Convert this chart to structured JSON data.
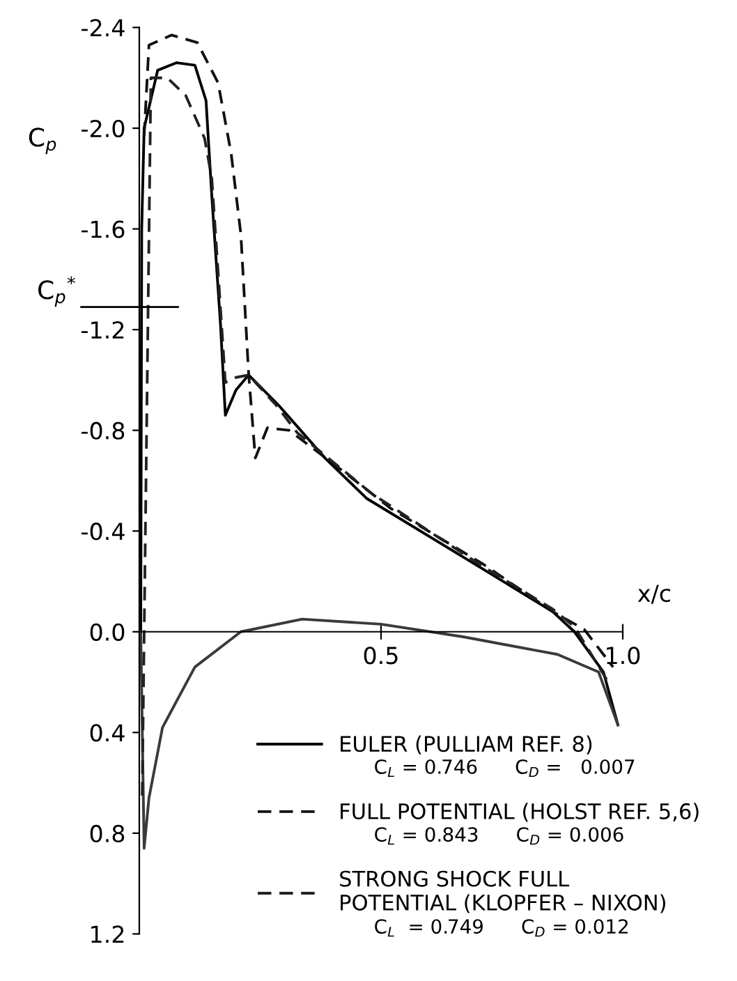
{
  "chart_data": {
    "type": "line",
    "ylabel": "C$_{p}$",
    "xlabel": "x/c",
    "xlim": [
      0,
      1.0
    ],
    "ylim": [
      1.2,
      -2.4
    ],
    "xticks": [
      0.5,
      {
        "value": 1,
        "label": "1.0"
      }
    ],
    "yticks": [
      -2.4,
      {
        "value": -2,
        "label": "-2.0"
      },
      -1.6,
      -1.2,
      -0.8,
      -0.4,
      {
        "value": 0,
        "label": "0.0"
      },
      0.4,
      0.8,
      1.2
    ],
    "grid": false,
    "legend": "bottom right",
    "marker": "none",
    "ref_lines": [
      {
        "axis": "y",
        "value": -1.29,
        "label": "C$_{p}$$^{*}$",
        "color": "#000000"
      }
    ],
    "annotations": [
      "C$_{L}$ = 0.746      C$_{D}$ =   0.007",
      "C$_{L}$ = 0.843      C$_{D}$ = 0.006",
      "C$_{L}$  = 0.749      C$_{D}$ = 0.012"
    ],
    "series": [
      {
        "name": "EULER (PULLIAM REF. 8)",
        "color": "#000000",
        "line_style": "solid",
        "x": [
          0.003,
          0.005,
          0.01,
          0.038,
          0.077,
          0.115,
          0.138,
          0.15,
          0.168,
          0.178,
          0.2,
          0.226,
          0.288,
          0.384,
          0.47,
          0.71,
          0.855,
          0.9,
          0.96,
          0.99
        ],
        "values": [
          0.0,
          -1.6,
          -2.0,
          -2.23,
          -2.26,
          -2.25,
          -2.11,
          -1.73,
          -1.22,
          -0.86,
          -0.96,
          -1.02,
          -0.9,
          -0.69,
          -0.53,
          -0.25,
          -0.08,
          0.0,
          0.16,
          0.37
        ]
      },
      {
        "color": "#3a3a3a",
        "line_style": "solid",
        "x": [
          0.003,
          0.01,
          0.02,
          0.048,
          0.115,
          0.21,
          0.337,
          0.5,
          0.67,
          0.865,
          0.95,
          0.99
        ],
        "values": [
          0.0,
          0.86,
          0.66,
          0.38,
          0.14,
          0.0,
          -0.05,
          -0.03,
          0.02,
          0.09,
          0.16,
          0.37
        ]
      },
      {
        "name": "FULL POTENTIAL (HOLST REF. 5,6)",
        "color": "#111111",
        "line_style": "dashed",
        "x": [
          0.01,
          0.02,
          0.067,
          0.12,
          0.163,
          0.19,
          0.21,
          0.226,
          0.24,
          0.265,
          0.31,
          0.42,
          0.52,
          0.71,
          0.855,
          0.92,
          0.98
        ],
        "values": [
          -1.97,
          -2.33,
          -2.37,
          -2.34,
          -2.18,
          -1.9,
          -1.58,
          -1.03,
          -0.69,
          -0.81,
          -0.8,
          -0.64,
          -0.49,
          -0.27,
          -0.08,
          -0.01,
          0.14
        ]
      },
      {
        "name": "STRONG SHOCK FULL\nPOTENTIAL (KLOPFER – NIXON)",
        "color": "#222222",
        "line_style": "dashed",
        "x": [
          0.006,
          0.024,
          0.058,
          0.096,
          0.135,
          0.15,
          0.164,
          0.178,
          0.2,
          0.226,
          0.283,
          0.327,
          0.48,
          0.71,
          0.855,
          0.9,
          0.97
        ],
        "values": [
          0.65,
          -2.2,
          -2.2,
          -2.13,
          -1.96,
          -1.8,
          -1.4,
          -0.99,
          -1.01,
          -1.02,
          -0.9,
          -0.79,
          -0.55,
          -0.26,
          -0.09,
          -0.02,
          0.2
        ]
      }
    ]
  }
}
